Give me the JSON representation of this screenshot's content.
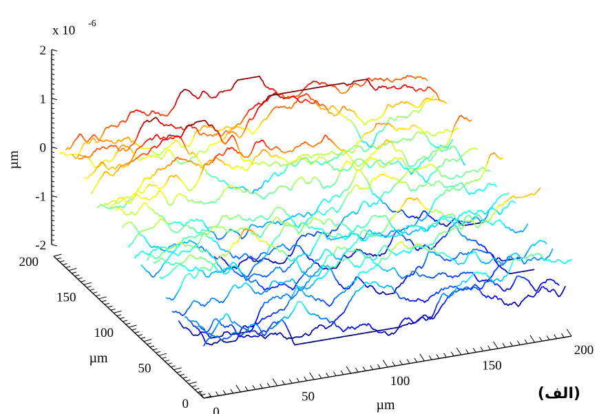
{
  "chart_data": {
    "type": "line",
    "subtype": "3d-waterfall-surface-profiles",
    "colormap": "jet",
    "grid": false,
    "z_axis": {
      "label": "µm",
      "exponent_label": "x 10",
      "exponent": "-6",
      "ticks": [
        "2",
        "1",
        "0",
        "-1",
        "-2"
      ],
      "lim": [
        -2,
        2
      ]
    },
    "x_axis": {
      "label": "µm",
      "ticks": [
        "0",
        "50",
        "100",
        "150",
        "200"
      ],
      "lim": [
        0,
        200
      ]
    },
    "y_axis": {
      "label": "µm",
      "ticks": [
        "0",
        "50",
        "100",
        "150",
        "200"
      ],
      "lim": [
        0,
        200
      ]
    },
    "profiles": {
      "count": 24,
      "y_start": 0,
      "y_end": 192,
      "points_per_profile": 220,
      "height_range": [
        -2,
        2
      ]
    },
    "panel_label": "(الف)"
  }
}
